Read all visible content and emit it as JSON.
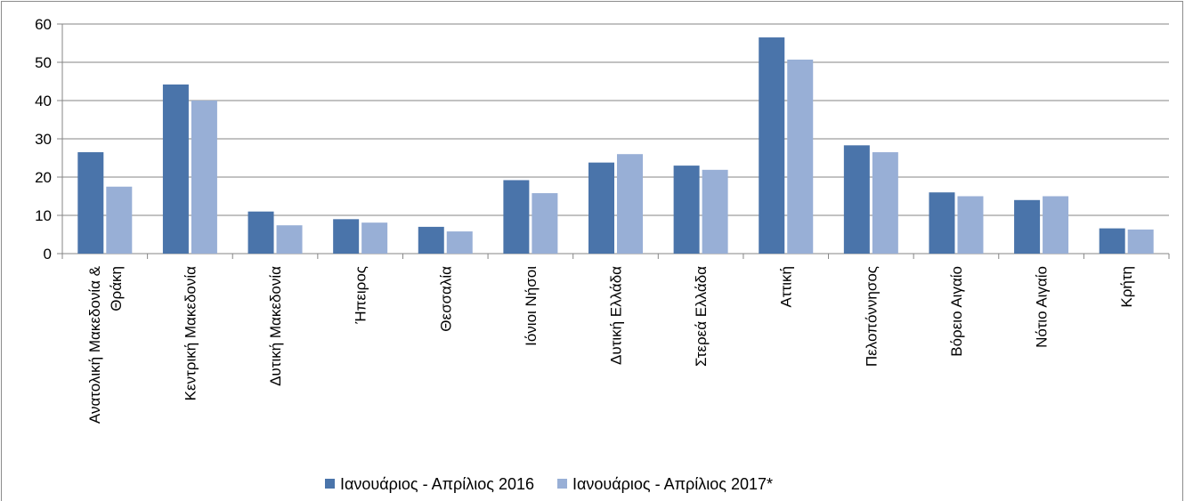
{
  "chart_data": {
    "type": "bar",
    "categories": [
      [
        "Ανατολική Μακεδονία &",
        "Θράκη"
      ],
      [
        "Κεντρική Μακεδονία"
      ],
      [
        "Δυτική Μακεδονία"
      ],
      [
        "Ήπειρος"
      ],
      [
        "Θεσσαλία"
      ],
      [
        "Ιόνιοι Νήσοι"
      ],
      [
        "Δυτική Ελλάδα"
      ],
      [
        "Στερεά Ελλάδα"
      ],
      [
        "Αττική"
      ],
      [
        "Πελοπόννησος"
      ],
      [
        "Βόρειο Αιγαίο"
      ],
      [
        "Νότιο Αιγαίο"
      ],
      [
        "Κρήτη"
      ]
    ],
    "series": [
      {
        "name": "Ιανουάριος - Απρίλιος 2016",
        "color": "#4a74aa",
        "values": [
          26.5,
          44.2,
          11,
          9,
          7,
          19.2,
          23.8,
          23,
          56.5,
          28.3,
          16,
          14,
          6.6
        ]
      },
      {
        "name": "Ιανουάριος - Απρίλιος 2017*",
        "color": "#98afd6",
        "values": [
          17.5,
          40,
          7.4,
          8.1,
          5.8,
          15.8,
          26,
          21.9,
          50.7,
          26.5,
          15,
          15,
          6.3
        ]
      }
    ],
    "ylim": [
      0,
      60
    ],
    "yticks": [
      0,
      10,
      20,
      30,
      40,
      50,
      60
    ],
    "grid": true,
    "legend_position": "bottom"
  }
}
